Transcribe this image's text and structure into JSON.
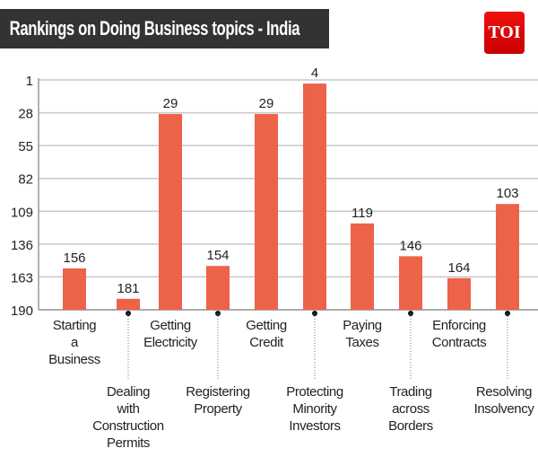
{
  "header": {
    "title": "Rankings on Doing Business topics - India",
    "logo": "TOI"
  },
  "colors": {
    "bar": "#ec634a",
    "title_bg": "#333333",
    "logo": "#e00000"
  },
  "chart_data": {
    "type": "bar",
    "title": "Rankings on Doing Business topics - India",
    "categories": [
      [
        "Starting",
        "a",
        "Business"
      ],
      [
        "Dealing",
        "with",
        "Construction",
        "Permits"
      ],
      [
        "Getting",
        "Electricity"
      ],
      [
        "Registering",
        "Property"
      ],
      [
        "Getting",
        "Credit"
      ],
      [
        "Protecting",
        "Minority",
        "Investors"
      ],
      [
        "Paying",
        "Taxes"
      ],
      [
        "Trading",
        "across",
        "Borders"
      ],
      [
        "Enforcing",
        "Contracts"
      ],
      [
        "Resolving",
        "Insolvency"
      ]
    ],
    "values": [
      156,
      181,
      29,
      154,
      29,
      4,
      119,
      146,
      164,
      103
    ],
    "y_axis": {
      "reversed": true,
      "ylim": [
        1,
        190
      ],
      "ticks": [
        1,
        28,
        55,
        82,
        109,
        136,
        163,
        190
      ]
    },
    "grid": true,
    "xlabel": "",
    "ylabel": ""
  }
}
